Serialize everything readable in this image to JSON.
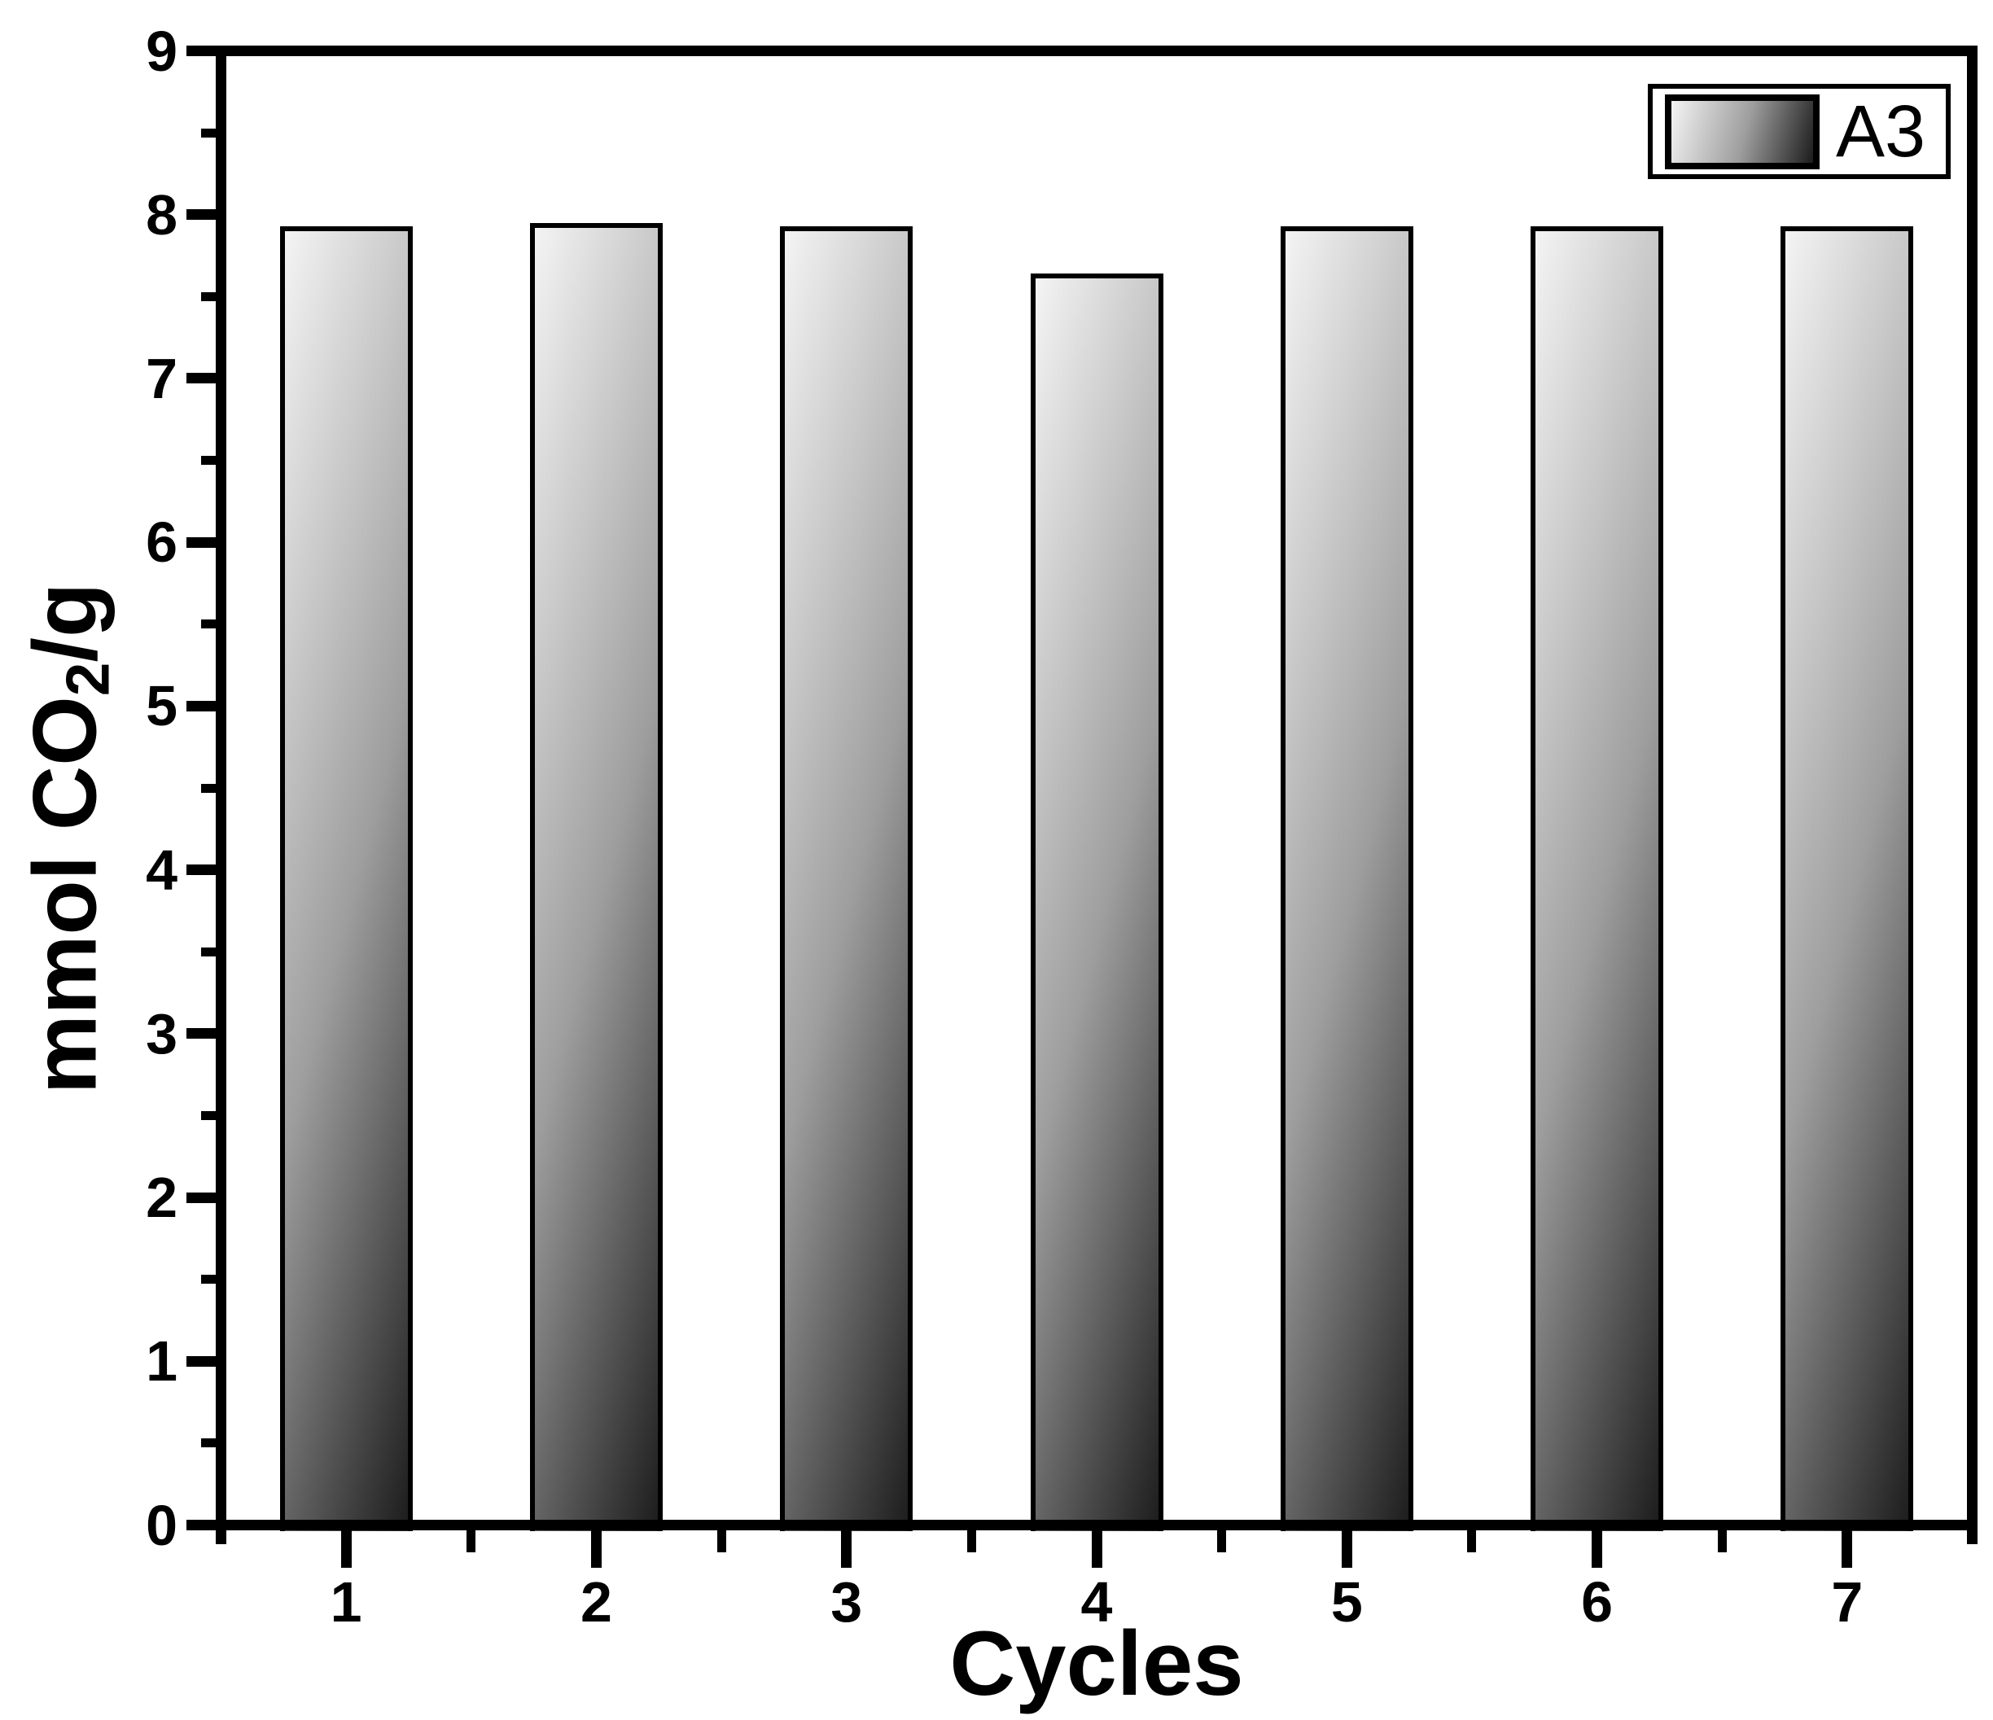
{
  "chart_data": {
    "type": "bar",
    "categories": [
      "1",
      "2",
      "3",
      "4",
      "5",
      "6",
      "7"
    ],
    "values": [
      7.93,
      7.95,
      7.93,
      7.64,
      7.93,
      7.93,
      7.93
    ],
    "series_name": "A3",
    "title": "",
    "xlabel": "Cycles",
    "ylabel": "mmol CO2/g",
    "ylabel_parts": {
      "prefix": "mmol CO",
      "sub": "2",
      "suffix": "/g"
    },
    "ylim": [
      0,
      9
    ],
    "yticks": [
      0,
      1,
      2,
      3,
      4,
      5,
      6,
      7,
      8,
      9
    ],
    "ytick_labels": [
      "0",
      "1",
      "2",
      "3",
      "4",
      "5",
      "6",
      "7",
      "8",
      "9"
    ],
    "yminor_step": 0.5,
    "xminor_between_categories": true,
    "grid": false,
    "legend_position": "top-right",
    "frame_color": "#000000",
    "background_color": "#ffffff",
    "bar_fill": {
      "type": "linear-gradient",
      "direction": "left-to-right",
      "from": "#f4f4f4",
      "mid": "#9e9e9e",
      "to": "#1c1c1c"
    }
  }
}
